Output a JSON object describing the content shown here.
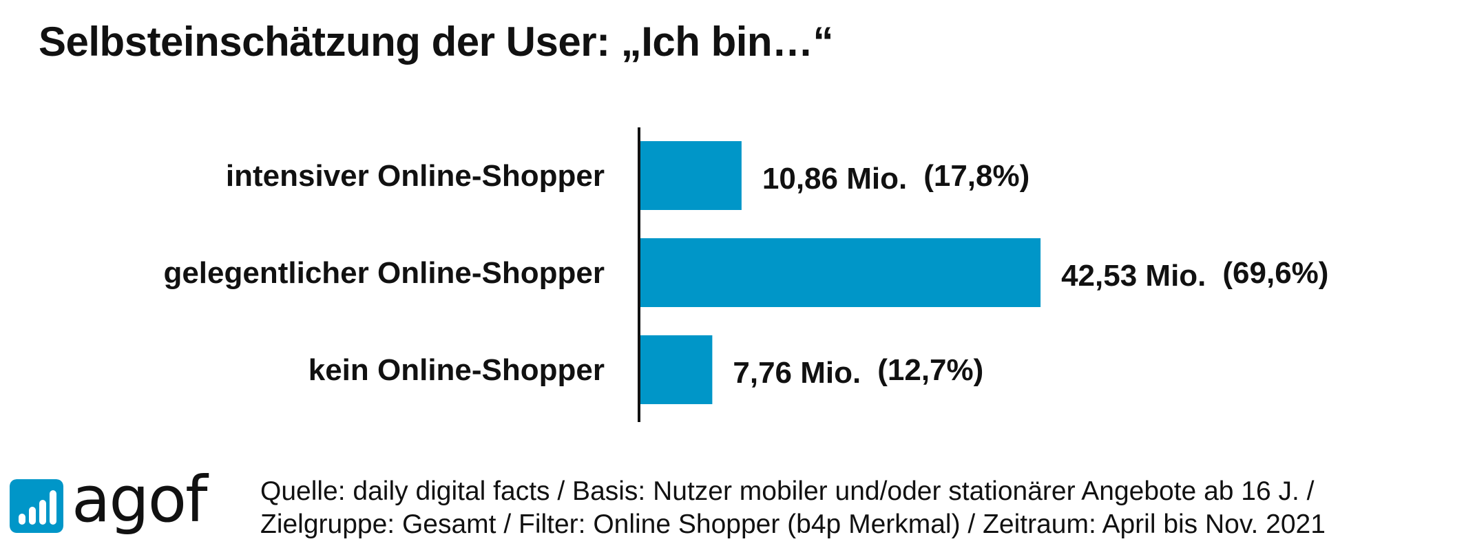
{
  "chart_data": {
    "type": "bar",
    "orientation": "horizontal",
    "title": "Selbsteinschätzung der User: „Ich bin…“",
    "categories": [
      "intensiver Online-Shopper",
      "gelegentlicher Online-Shopper",
      "kein Online-Shopper"
    ],
    "values": [
      10.86,
      42.53,
      7.76
    ],
    "percentages": [
      17.8,
      69.6,
      12.7
    ],
    "value_labels": [
      "10,86 Mio.",
      "42,53 Mio.",
      "7,76 Mio."
    ],
    "percent_labels": [
      "(17,8%)",
      "(69,6%)",
      "(12,7%)"
    ],
    "unit": "Mio.",
    "xlim": [
      0,
      60
    ],
    "grid": false,
    "legend": "none",
    "bar_color": "#0096C8",
    "axis_color": "#111111"
  },
  "logo": {
    "text": "agof",
    "icon": "bar-chart-icon",
    "color": "#0096C8"
  },
  "source": {
    "line1": "Quelle: daily digital facts  / Basis: Nutzer mobiler und/oder stationärer Angebote ab 16 J. /",
    "line2": "Zielgruppe: Gesamt / Filter: Online Shopper (b4p Merkmal) / Zeitraum: April bis Nov. 2021"
  }
}
